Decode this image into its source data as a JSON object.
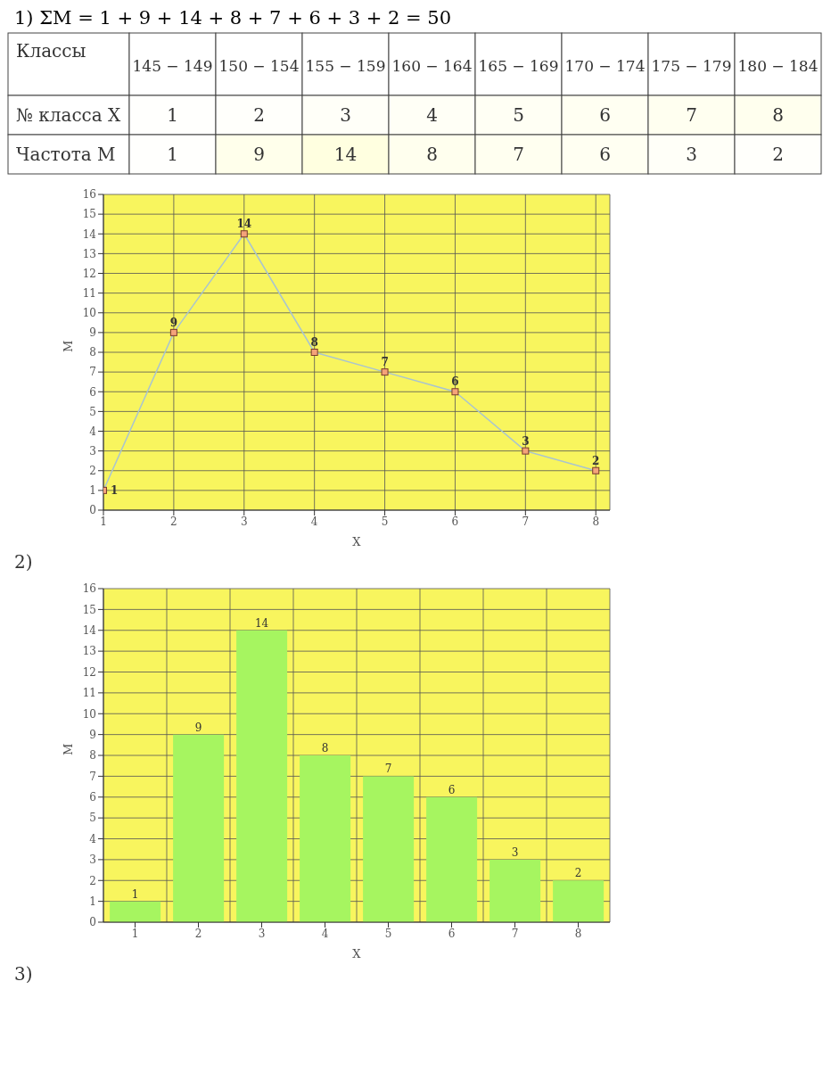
{
  "chart_data": [
    {
      "type": "heatmap",
      "title": "1) ΣM = 1 + 9 + 14 + 8 + 7 + 6 + 3 + 2 = 50",
      "xlabel": "Классы",
      "categories": [
        "145 − 149",
        "150 − 154",
        "155 − 159",
        "160 − 164",
        "165 − 169",
        "170 − 174",
        "175 − 179",
        "180 − 184"
      ],
      "y_categories": [
        "№ класса X",
        "Частота M"
      ],
      "cells": [
        [
          1,
          2,
          3,
          4,
          5,
          6,
          7,
          8
        ],
        [
          1,
          9,
          14,
          8,
          7,
          6,
          3,
          2
        ]
      ],
      "cell_labels": [
        [
          "1",
          "2",
          "3",
          "4",
          "5",
          "6",
          "7",
          "8"
        ],
        [
          "1",
          "9",
          "14",
          "8",
          "7",
          "6",
          "3",
          "2"
        ]
      ]
    },
    {
      "type": "line",
      "x": [
        1,
        2,
        3,
        4,
        5,
        6,
        7,
        8
      ],
      "series": [
        {
          "color": "#a9c4cf",
          "values": [
            1,
            9,
            14,
            8,
            7,
            6,
            3,
            2
          ]
        }
      ],
      "xlim": [
        1,
        8.2
      ],
      "xticks": [
        1,
        2,
        3,
        4,
        5,
        6,
        7,
        8
      ],
      "ylim": [
        0,
        16
      ],
      "yticks": [
        0,
        1,
        2,
        3,
        4,
        5,
        6,
        7,
        8,
        9,
        10,
        11,
        12,
        13,
        14,
        15,
        16
      ],
      "xlabel": "X",
      "ylabel": "M",
      "grid": true,
      "marker": "square",
      "data_labels": true,
      "annotations": [
        "2)"
      ]
    },
    {
      "type": "bar",
      "categories": [
        "1",
        "2",
        "3",
        "4",
        "5",
        "6",
        "7",
        "8"
      ],
      "series": [
        {
          "color": "#a6f560",
          "values": [
            1,
            9,
            14,
            8,
            7,
            6,
            3,
            2
          ]
        }
      ],
      "ylim": [
        0,
        16
      ],
      "yticks": [
        0,
        1,
        2,
        3,
        4,
        5,
        6,
        7,
        8,
        9,
        10,
        11,
        12,
        13,
        14,
        15,
        16
      ],
      "xlabel": "X",
      "ylabel": "M",
      "grid": true,
      "data_labels": true,
      "annotations": [
        "3)"
      ]
    }
  ]
}
